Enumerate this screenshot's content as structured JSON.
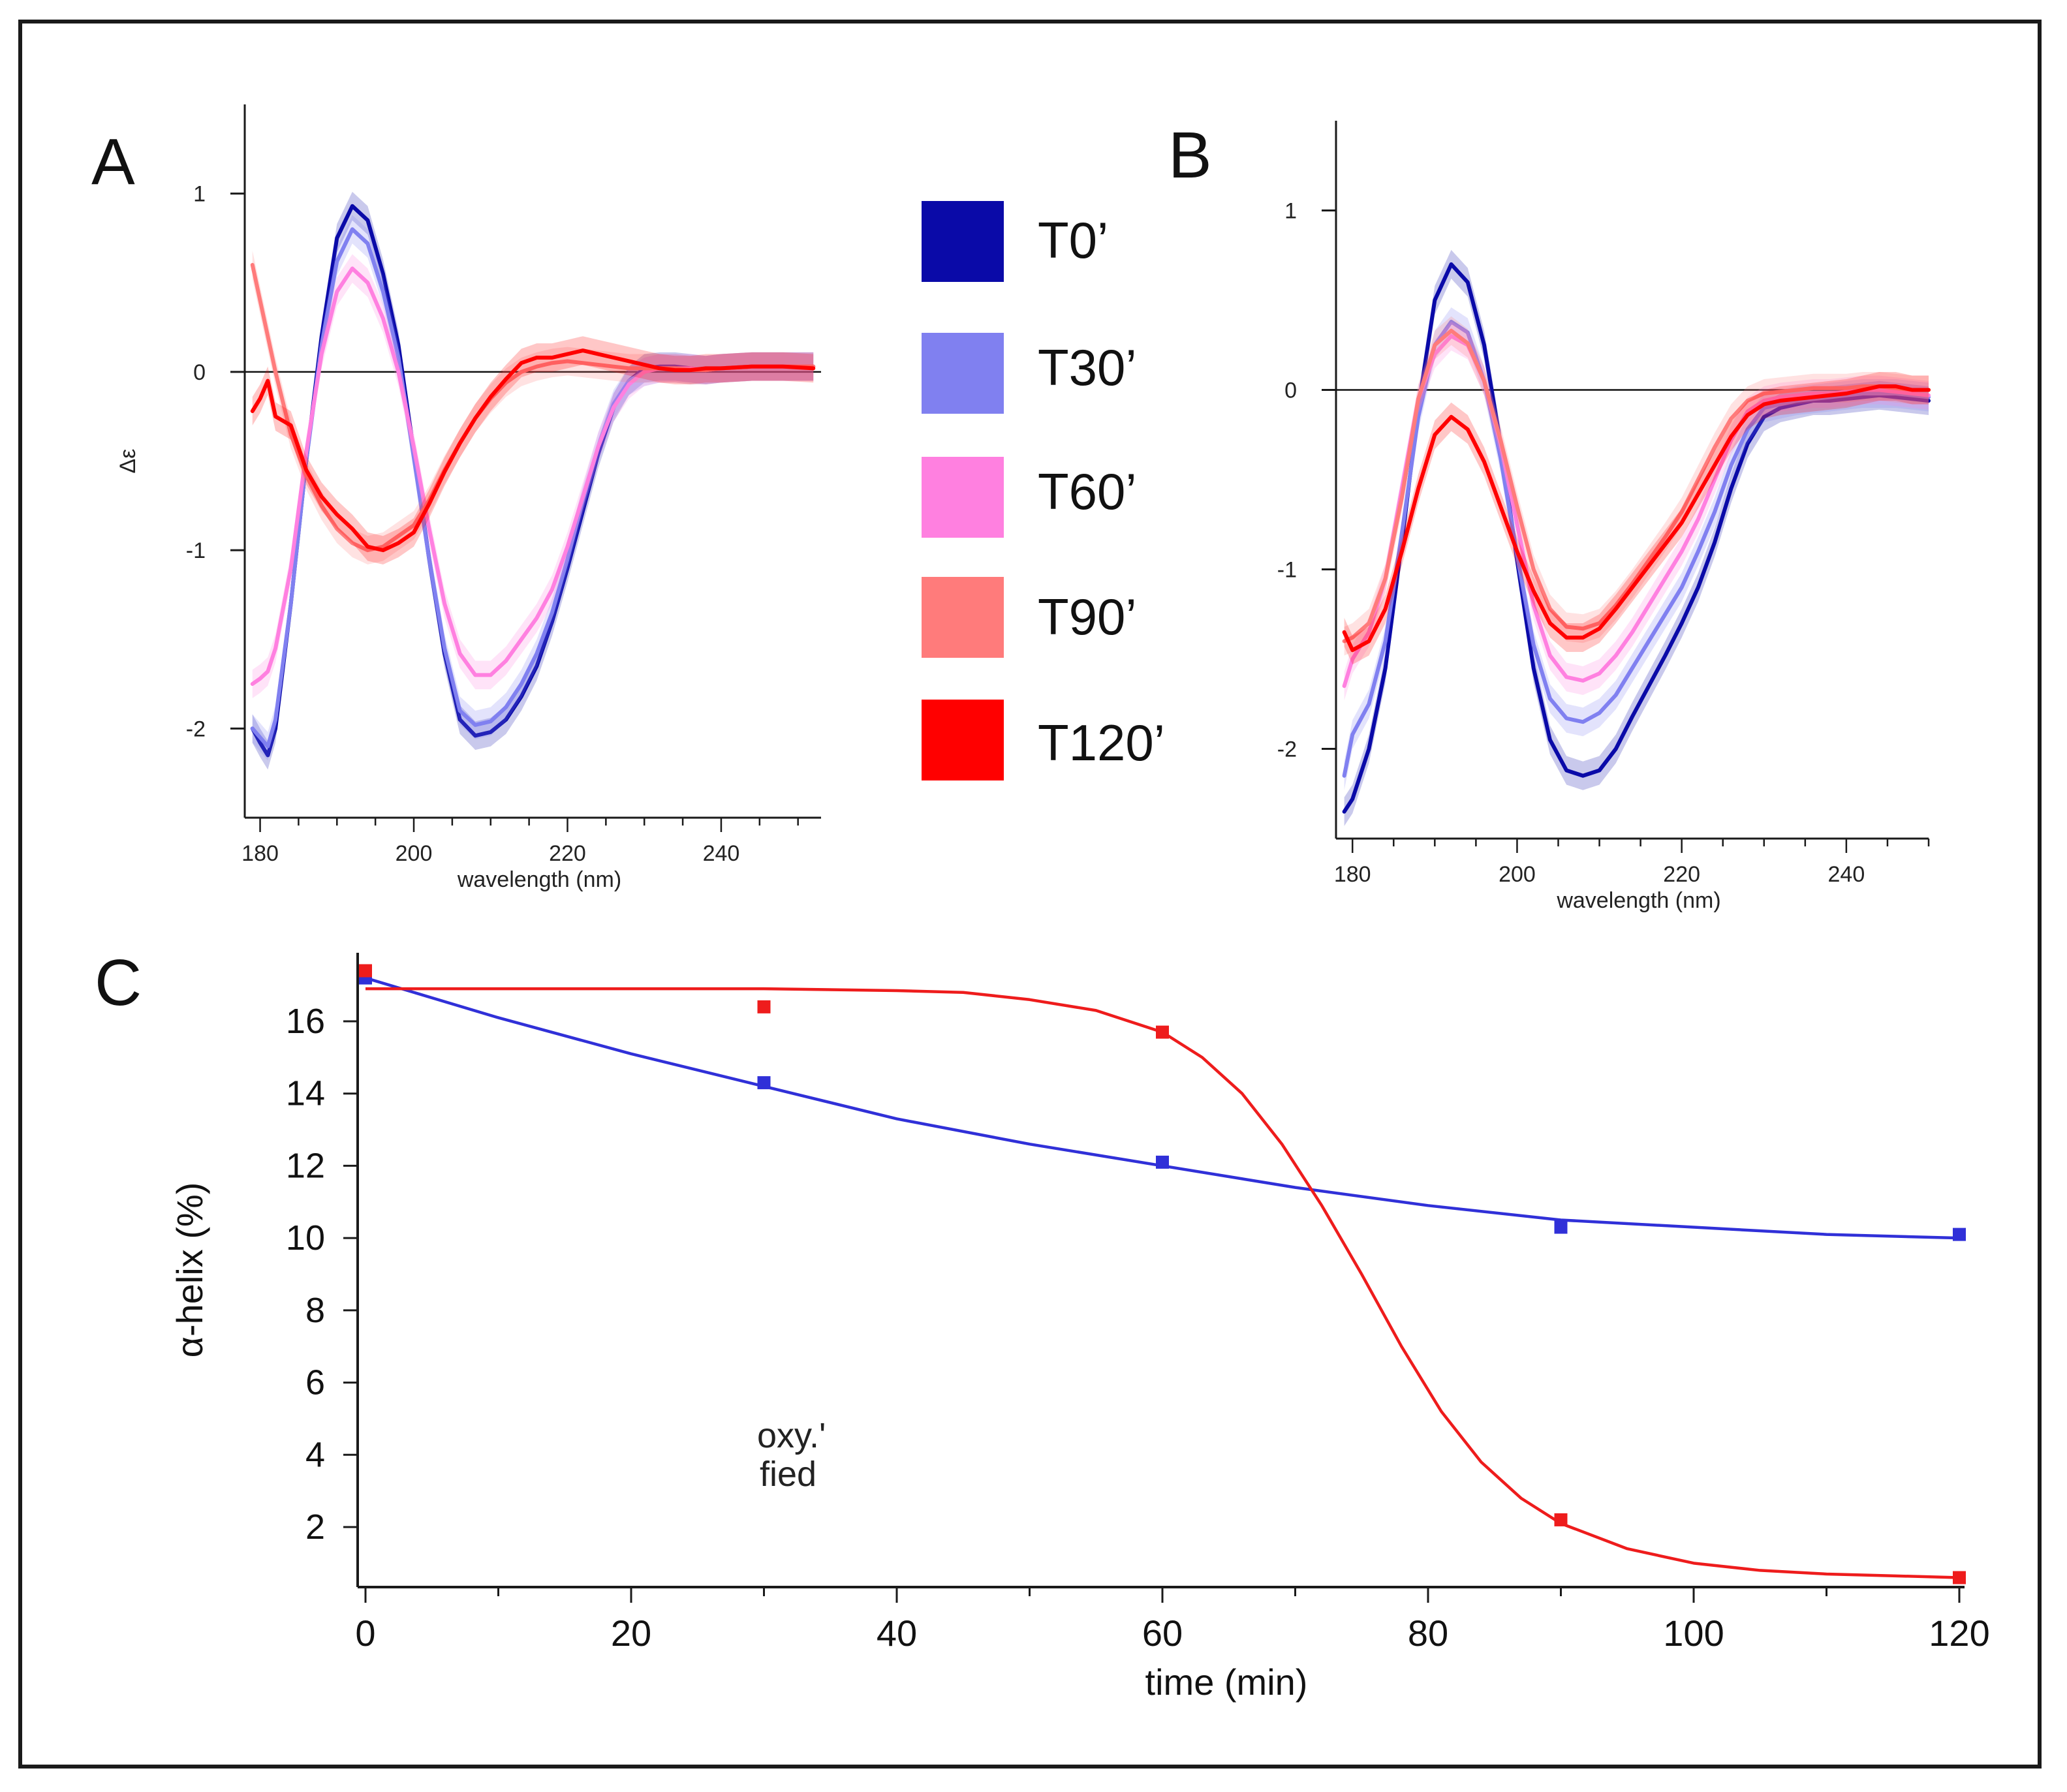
{
  "colors": {
    "T0": "#0a0aa8",
    "T30": "#8080f0",
    "T60": "#ff80e0",
    "T90": "#ff7b7b",
    "T120": "#ff0000",
    "axis": "#1a1a1a"
  },
  "legend": {
    "items": [
      {
        "key": "T0",
        "label": "T0’"
      },
      {
        "key": "T30",
        "label": "T30’"
      },
      {
        "key": "T60",
        "label": "T60’"
      },
      {
        "key": "T90",
        "label": "T90’"
      },
      {
        "key": "T120",
        "label": "T120’"
      }
    ]
  },
  "panels": {
    "A": "A",
    "B": "B",
    "C": "C"
  },
  "overlay_text": {
    "line1": "oxy.'",
    "line2": "fied"
  },
  "chart_data": [
    {
      "id": "A",
      "type": "line",
      "title": "",
      "xlabel": "wavelength (nm)",
      "ylabel": "Δε",
      "xlim": [
        178,
        253
      ],
      "ylim": [
        -2.5,
        1.5
      ],
      "xticks": [
        180,
        200,
        220,
        240
      ],
      "yticks": [
        1,
        0,
        -1,
        -2
      ],
      "zero_line": true,
      "x": [
        179,
        180,
        181,
        182,
        184,
        186,
        188,
        190,
        192,
        194,
        196,
        198,
        200,
        202,
        204,
        206,
        208,
        210,
        212,
        214,
        216,
        218,
        220,
        222,
        224,
        226,
        228,
        230,
        232,
        234,
        236,
        238,
        240,
        244,
        248,
        252
      ],
      "series": [
        {
          "name": "T0’",
          "key": "T0",
          "values": [
            -2.0,
            -2.08,
            -2.15,
            -2.0,
            -1.3,
            -0.5,
            0.2,
            0.75,
            0.93,
            0.85,
            0.55,
            0.15,
            -0.45,
            -1.05,
            -1.58,
            -1.95,
            -2.04,
            -2.02,
            -1.95,
            -1.82,
            -1.65,
            -1.4,
            -1.1,
            -0.78,
            -0.46,
            -0.2,
            -0.05,
            0.02,
            0.03,
            0.03,
            0.02,
            0.01,
            0.02,
            0.03,
            0.03,
            0.03
          ]
        },
        {
          "name": "T30’",
          "key": "T30",
          "values": [
            -2.0,
            -2.05,
            -2.1,
            -1.95,
            -1.3,
            -0.5,
            0.15,
            0.62,
            0.8,
            0.72,
            0.45,
            0.08,
            -0.48,
            -1.05,
            -1.55,
            -1.9,
            -1.98,
            -1.96,
            -1.88,
            -1.75,
            -1.58,
            -1.35,
            -1.05,
            -0.72,
            -0.42,
            -0.18,
            -0.05,
            0.0,
            0.02,
            0.02,
            0.01,
            0.01,
            0.02,
            0.03,
            0.03,
            0.03
          ]
        },
        {
          "name": "T60’",
          "key": "T60",
          "values": [
            -1.75,
            -1.72,
            -1.68,
            -1.55,
            -1.1,
            -0.45,
            0.1,
            0.45,
            0.58,
            0.5,
            0.3,
            0.0,
            -0.42,
            -0.88,
            -1.3,
            -1.58,
            -1.7,
            -1.7,
            -1.62,
            -1.5,
            -1.38,
            -1.22,
            -0.98,
            -0.7,
            -0.42,
            -0.2,
            -0.07,
            0.0,
            0.02,
            0.02,
            0.02,
            0.01,
            0.02,
            0.03,
            0.03,
            0.03
          ]
        },
        {
          "name": "T90’",
          "key": "T90",
          "values": [
            0.6,
            0.4,
            0.2,
            0.0,
            -0.35,
            -0.58,
            -0.75,
            -0.88,
            -0.96,
            -1.0,
            -0.98,
            -0.92,
            -0.86,
            -0.72,
            -0.55,
            -0.4,
            -0.26,
            -0.15,
            -0.06,
            0.0,
            0.03,
            0.05,
            0.06,
            0.05,
            0.04,
            0.03,
            0.02,
            0.02,
            0.02,
            0.02,
            0.01,
            0.01,
            0.02,
            0.03,
            0.03,
            0.03
          ]
        },
        {
          "name": "T120’",
          "key": "T120",
          "values": [
            -0.22,
            -0.15,
            -0.05,
            -0.25,
            -0.3,
            -0.55,
            -0.7,
            -0.8,
            -0.88,
            -0.98,
            -1.0,
            -0.96,
            -0.9,
            -0.74,
            -0.56,
            -0.4,
            -0.26,
            -0.14,
            -0.04,
            0.05,
            0.08,
            0.08,
            0.1,
            0.12,
            0.1,
            0.08,
            0.06,
            0.04,
            0.02,
            0.01,
            0.01,
            0.02,
            0.02,
            0.03,
            0.03,
            0.02
          ]
        }
      ]
    },
    {
      "id": "B",
      "type": "line",
      "title": "",
      "xlabel": "wavelength (nm)",
      "ylabel": "",
      "xlim": [
        178,
        250
      ],
      "ylim": [
        -2.5,
        1.5
      ],
      "xticks": [
        180,
        200,
        220,
        240
      ],
      "yticks": [
        1,
        0,
        -1,
        -2
      ],
      "zero_line": true,
      "x": [
        179,
        180,
        182,
        184,
        186,
        188,
        190,
        192,
        194,
        196,
        198,
        200,
        202,
        204,
        206,
        208,
        210,
        212,
        214,
        216,
        218,
        220,
        222,
        224,
        226,
        228,
        230,
        232,
        234,
        236,
        238,
        240,
        242,
        244,
        246,
        248,
        250
      ],
      "series": [
        {
          "name": "T0’",
          "key": "T0",
          "values": [
            -2.35,
            -2.28,
            -2.0,
            -1.55,
            -0.85,
            -0.1,
            0.5,
            0.7,
            0.6,
            0.25,
            -0.3,
            -0.95,
            -1.55,
            -1.95,
            -2.12,
            -2.15,
            -2.12,
            -2.0,
            -1.82,
            -1.65,
            -1.48,
            -1.3,
            -1.1,
            -0.85,
            -0.55,
            -0.3,
            -0.15,
            -0.1,
            -0.08,
            -0.06,
            -0.06,
            -0.05,
            -0.04,
            -0.03,
            -0.04,
            -0.05,
            -0.06
          ]
        },
        {
          "name": "T30’",
          "key": "T30",
          "values": [
            -2.15,
            -1.92,
            -1.75,
            -1.4,
            -0.8,
            -0.15,
            0.25,
            0.38,
            0.32,
            0.05,
            -0.38,
            -0.92,
            -1.42,
            -1.72,
            -1.83,
            -1.85,
            -1.8,
            -1.7,
            -1.55,
            -1.4,
            -1.25,
            -1.1,
            -0.9,
            -0.68,
            -0.42,
            -0.22,
            -0.1,
            -0.08,
            -0.06,
            -0.05,
            -0.04,
            -0.03,
            -0.02,
            -0.02,
            -0.02,
            -0.03,
            -0.04
          ]
        },
        {
          "name": "T60’",
          "key": "T60",
          "values": [
            -1.65,
            -1.5,
            -1.35,
            -1.05,
            -0.55,
            -0.05,
            0.2,
            0.3,
            0.25,
            0.05,
            -0.3,
            -0.75,
            -1.2,
            -1.48,
            -1.6,
            -1.62,
            -1.58,
            -1.48,
            -1.35,
            -1.2,
            -1.05,
            -0.9,
            -0.72,
            -0.5,
            -0.28,
            -0.12,
            -0.06,
            -0.04,
            -0.03,
            -0.02,
            -0.02,
            -0.01,
            0.0,
            0.0,
            -0.01,
            -0.02,
            -0.03
          ]
        },
        {
          "name": "T90’",
          "key": "T90",
          "values": [
            -1.4,
            -1.38,
            -1.3,
            -1.05,
            -0.6,
            -0.05,
            0.25,
            0.33,
            0.26,
            0.05,
            -0.28,
            -0.65,
            -1.0,
            -1.22,
            -1.32,
            -1.33,
            -1.3,
            -1.2,
            -1.08,
            -0.95,
            -0.82,
            -0.68,
            -0.5,
            -0.32,
            -0.16,
            -0.06,
            -0.02,
            -0.01,
            0.0,
            0.01,
            0.01,
            0.01,
            0.02,
            0.02,
            0.01,
            0.0,
            0.0
          ]
        },
        {
          "name": "T120’",
          "key": "T120",
          "values": [
            -1.35,
            -1.45,
            -1.4,
            -1.22,
            -0.9,
            -0.55,
            -0.25,
            -0.15,
            -0.22,
            -0.4,
            -0.65,
            -0.9,
            -1.12,
            -1.3,
            -1.38,
            -1.38,
            -1.33,
            -1.22,
            -1.1,
            -0.98,
            -0.86,
            -0.74,
            -0.58,
            -0.42,
            -0.26,
            -0.14,
            -0.08,
            -0.06,
            -0.05,
            -0.04,
            -0.03,
            -0.02,
            0.0,
            0.02,
            0.02,
            0.0,
            0.0
          ]
        }
      ]
    },
    {
      "id": "C",
      "type": "scatter",
      "title": "",
      "xlabel": "time (min)",
      "ylabel": "α-helix (%)",
      "xlim": [
        -1,
        123
      ],
      "ylim": [
        0,
        17.5
      ],
      "xticks": [
        0,
        20,
        40,
        60,
        80,
        100,
        120
      ],
      "yticks": [
        2,
        4,
        6,
        8,
        10,
        12,
        14,
        16
      ],
      "series": [
        {
          "name": "blue",
          "color": "#3030d8",
          "points_x": [
            0,
            30,
            60,
            90,
            120
          ],
          "points_y": [
            17.2,
            14.3,
            12.1,
            10.3,
            10.1
          ],
          "fit_x": [
            0,
            10,
            20,
            30,
            40,
            50,
            60,
            70,
            80,
            90,
            100,
            110,
            120
          ],
          "fit_y": [
            17.2,
            16.1,
            15.1,
            14.2,
            13.3,
            12.6,
            12.0,
            11.4,
            10.9,
            10.5,
            10.3,
            10.1,
            10.0
          ]
        },
        {
          "name": "red",
          "color": "#ee1c1c",
          "points_x": [
            0,
            30,
            60,
            90,
            120
          ],
          "points_y": [
            17.4,
            16.4,
            15.7,
            2.2,
            0.6
          ],
          "fit_x": [
            0,
            10,
            20,
            30,
            40,
            45,
            50,
            55,
            60,
            63,
            66,
            69,
            72,
            75,
            78,
            81,
            84,
            87,
            90,
            95,
            100,
            105,
            110,
            115,
            120
          ],
          "fit_y": [
            16.9,
            16.9,
            16.9,
            16.9,
            16.85,
            16.8,
            16.6,
            16.3,
            15.7,
            15.0,
            14.0,
            12.6,
            10.9,
            9.0,
            7.0,
            5.2,
            3.8,
            2.8,
            2.1,
            1.4,
            1.0,
            0.8,
            0.7,
            0.65,
            0.6
          ]
        }
      ]
    }
  ]
}
